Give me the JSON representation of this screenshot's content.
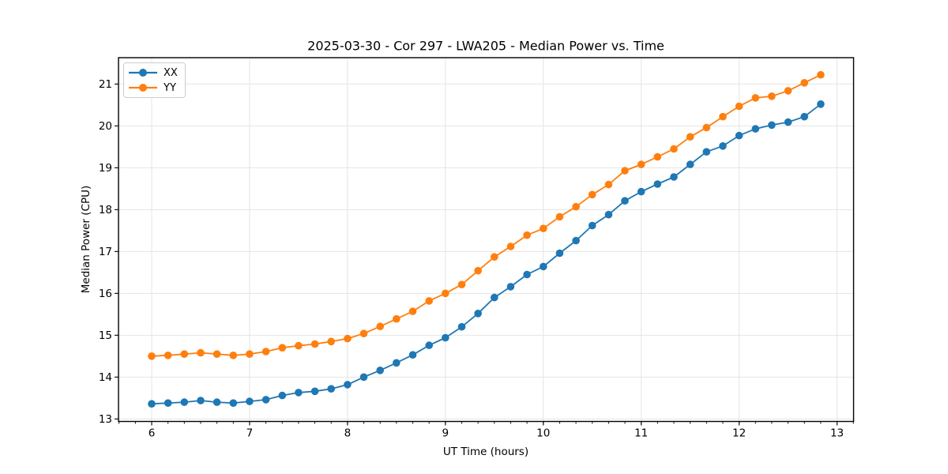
{
  "figure": {
    "background": "#ffffff"
  },
  "style": {
    "grid_color": "#e4e4e4",
    "spine_color": "#000000",
    "tick_color": "#000000",
    "text_color": "#000000",
    "line_width": 1.8,
    "marker_radius": 4.8
  },
  "legend": {
    "items": [
      {
        "label": "XX",
        "series": "xx"
      },
      {
        "label": "YY",
        "series": "yy"
      }
    ]
  },
  "chart_data": {
    "type": "line",
    "title": "2025-03-30 - Cor 297 - LWA205 - Median Power vs. Time",
    "xlabel": "UT Time (hours)",
    "ylabel": "Median Power (CPU)",
    "legend_position": "upper-left",
    "grid": true,
    "axes": {
      "xlim": [
        5.661,
        13.169
      ],
      "ylim": [
        12.94,
        21.63
      ],
      "xticks": [
        6,
        7,
        8,
        9,
        10,
        11,
        12,
        13
      ],
      "yticks": [
        13,
        14,
        15,
        16,
        17,
        18,
        19,
        20,
        21
      ],
      "x_minor_step": 0.1666667
    },
    "x": [
      6.0,
      6.1667,
      6.3333,
      6.5,
      6.6667,
      6.8333,
      7.0,
      7.1667,
      7.3333,
      7.5,
      7.6667,
      7.8333,
      8.0,
      8.1667,
      8.3333,
      8.5,
      8.6667,
      8.8333,
      9.0,
      9.1667,
      9.3333,
      9.5,
      9.6667,
      9.8333,
      10.0,
      10.1667,
      10.3333,
      10.5,
      10.6667,
      10.8333,
      11.0,
      11.1667,
      11.3333,
      11.5,
      11.6667,
      11.8333,
      12.0,
      12.1667,
      12.3333,
      12.5,
      12.6667,
      12.8333
    ],
    "series": [
      {
        "id": "xx",
        "name": "XX",
        "color": "#1f77b4",
        "values": [
          13.36,
          13.38,
          13.4,
          13.44,
          13.4,
          13.38,
          13.42,
          13.46,
          13.56,
          13.63,
          13.66,
          13.72,
          13.82,
          14.0,
          14.16,
          14.34,
          14.53,
          14.76,
          14.94,
          15.2,
          15.52,
          15.9,
          16.16,
          16.45,
          16.64,
          16.96,
          17.26,
          17.62,
          17.88,
          18.21,
          18.43,
          18.61,
          18.78,
          19.08,
          19.38,
          19.52,
          19.77,
          19.93,
          20.02,
          20.09,
          20.22,
          20.52
        ]
      },
      {
        "id": "yy",
        "name": "YY",
        "color": "#ff7f0e",
        "values": [
          14.5,
          14.52,
          14.55,
          14.58,
          14.55,
          14.52,
          14.55,
          14.61,
          14.7,
          14.75,
          14.79,
          14.85,
          14.92,
          15.04,
          15.21,
          15.39,
          15.57,
          15.82,
          16.0,
          16.21,
          16.54,
          16.87,
          17.12,
          17.39,
          17.55,
          17.83,
          18.07,
          18.36,
          18.6,
          18.93,
          19.08,
          19.26,
          19.45,
          19.74,
          19.96,
          20.22,
          20.47,
          20.67,
          20.71,
          20.84,
          21.03,
          21.22
        ]
      }
    ]
  }
}
